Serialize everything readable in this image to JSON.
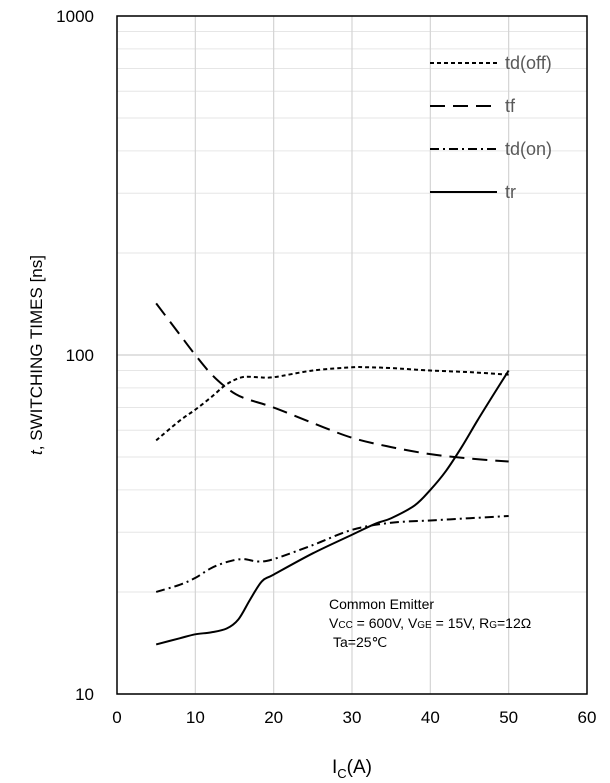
{
  "chart_data": {
    "type": "line",
    "title": "",
    "xlabel": {
      "main": "I",
      "sub": "C",
      "unit": "(A)"
    },
    "ylabel": {
      "italic": "t",
      "rest": ", SWITCHING TIMES [ns]"
    },
    "xlim": [
      0,
      60
    ],
    "ylim": [
      10,
      1000
    ],
    "yscale": "log",
    "grid": true,
    "x_ticks": [
      0,
      10,
      20,
      30,
      40,
      50,
      60
    ],
    "x_tick_labels": [
      "0",
      "10",
      "20",
      "30",
      "40",
      "50",
      "60"
    ],
    "y_ticks": [
      10,
      100,
      1000
    ],
    "y_tick_labels": [
      "10",
      "100",
      "1000"
    ],
    "legend_position": "top-right",
    "series": [
      {
        "name": "td(off)",
        "dash": "short-dash",
        "points": [
          [
            5,
            56
          ],
          [
            8,
            64
          ],
          [
            10,
            69
          ],
          [
            12,
            75
          ],
          [
            14,
            82
          ],
          [
            16,
            86
          ],
          [
            18,
            86
          ],
          [
            20,
            86
          ],
          [
            25,
            90
          ],
          [
            30,
            92
          ],
          [
            32,
            92
          ],
          [
            35,
            91.5
          ],
          [
            40,
            90
          ],
          [
            45,
            89
          ],
          [
            50,
            87.5
          ]
        ]
      },
      {
        "name": "tf",
        "dash": "long-dash",
        "points": [
          [
            5,
            142
          ],
          [
            8,
            115
          ],
          [
            10,
            100
          ],
          [
            12,
            88
          ],
          [
            14,
            80
          ],
          [
            16,
            75
          ],
          [
            20,
            70
          ],
          [
            25,
            63
          ],
          [
            30,
            57
          ],
          [
            35,
            53.5
          ],
          [
            40,
            51
          ],
          [
            45,
            49.5
          ],
          [
            50,
            48.5
          ]
        ]
      },
      {
        "name": "td(on)",
        "dash": "dash-dot",
        "points": [
          [
            5,
            20
          ],
          [
            8,
            21
          ],
          [
            10,
            22
          ],
          [
            12,
            23.5
          ],
          [
            14,
            24.5
          ],
          [
            16,
            25
          ],
          [
            18,
            24.6
          ],
          [
            20,
            25
          ],
          [
            25,
            27.5
          ],
          [
            30,
            30.5
          ],
          [
            35,
            32
          ],
          [
            40,
            32.5
          ],
          [
            45,
            33
          ],
          [
            50,
            33.5
          ]
        ]
      },
      {
        "name": "tr",
        "dash": "solid",
        "points": [
          [
            5,
            14
          ],
          [
            8,
            14.6
          ],
          [
            10,
            15
          ],
          [
            12,
            15.2
          ],
          [
            14,
            15.6
          ],
          [
            15.5,
            16.6
          ],
          [
            17,
            19
          ],
          [
            18.5,
            21.5
          ],
          [
            20,
            22.5
          ],
          [
            25,
            26
          ],
          [
            30,
            29.5
          ],
          [
            33,
            31.8
          ],
          [
            35,
            33
          ],
          [
            38,
            36
          ],
          [
            40,
            40
          ],
          [
            42,
            45.5
          ],
          [
            44,
            53.5
          ],
          [
            46,
            64
          ],
          [
            48,
            76
          ],
          [
            50,
            90
          ]
        ]
      }
    ],
    "annotation": {
      "line1": "Common Emitter",
      "line2": {
        "a": "V",
        "a_sub": "CC",
        "b": " = 600V, V",
        "b_sub": "GE",
        "c": " = 15V, R",
        "c_sub": "G",
        "d": "=12Ω"
      },
      "line3": "Ta=25℃"
    }
  }
}
